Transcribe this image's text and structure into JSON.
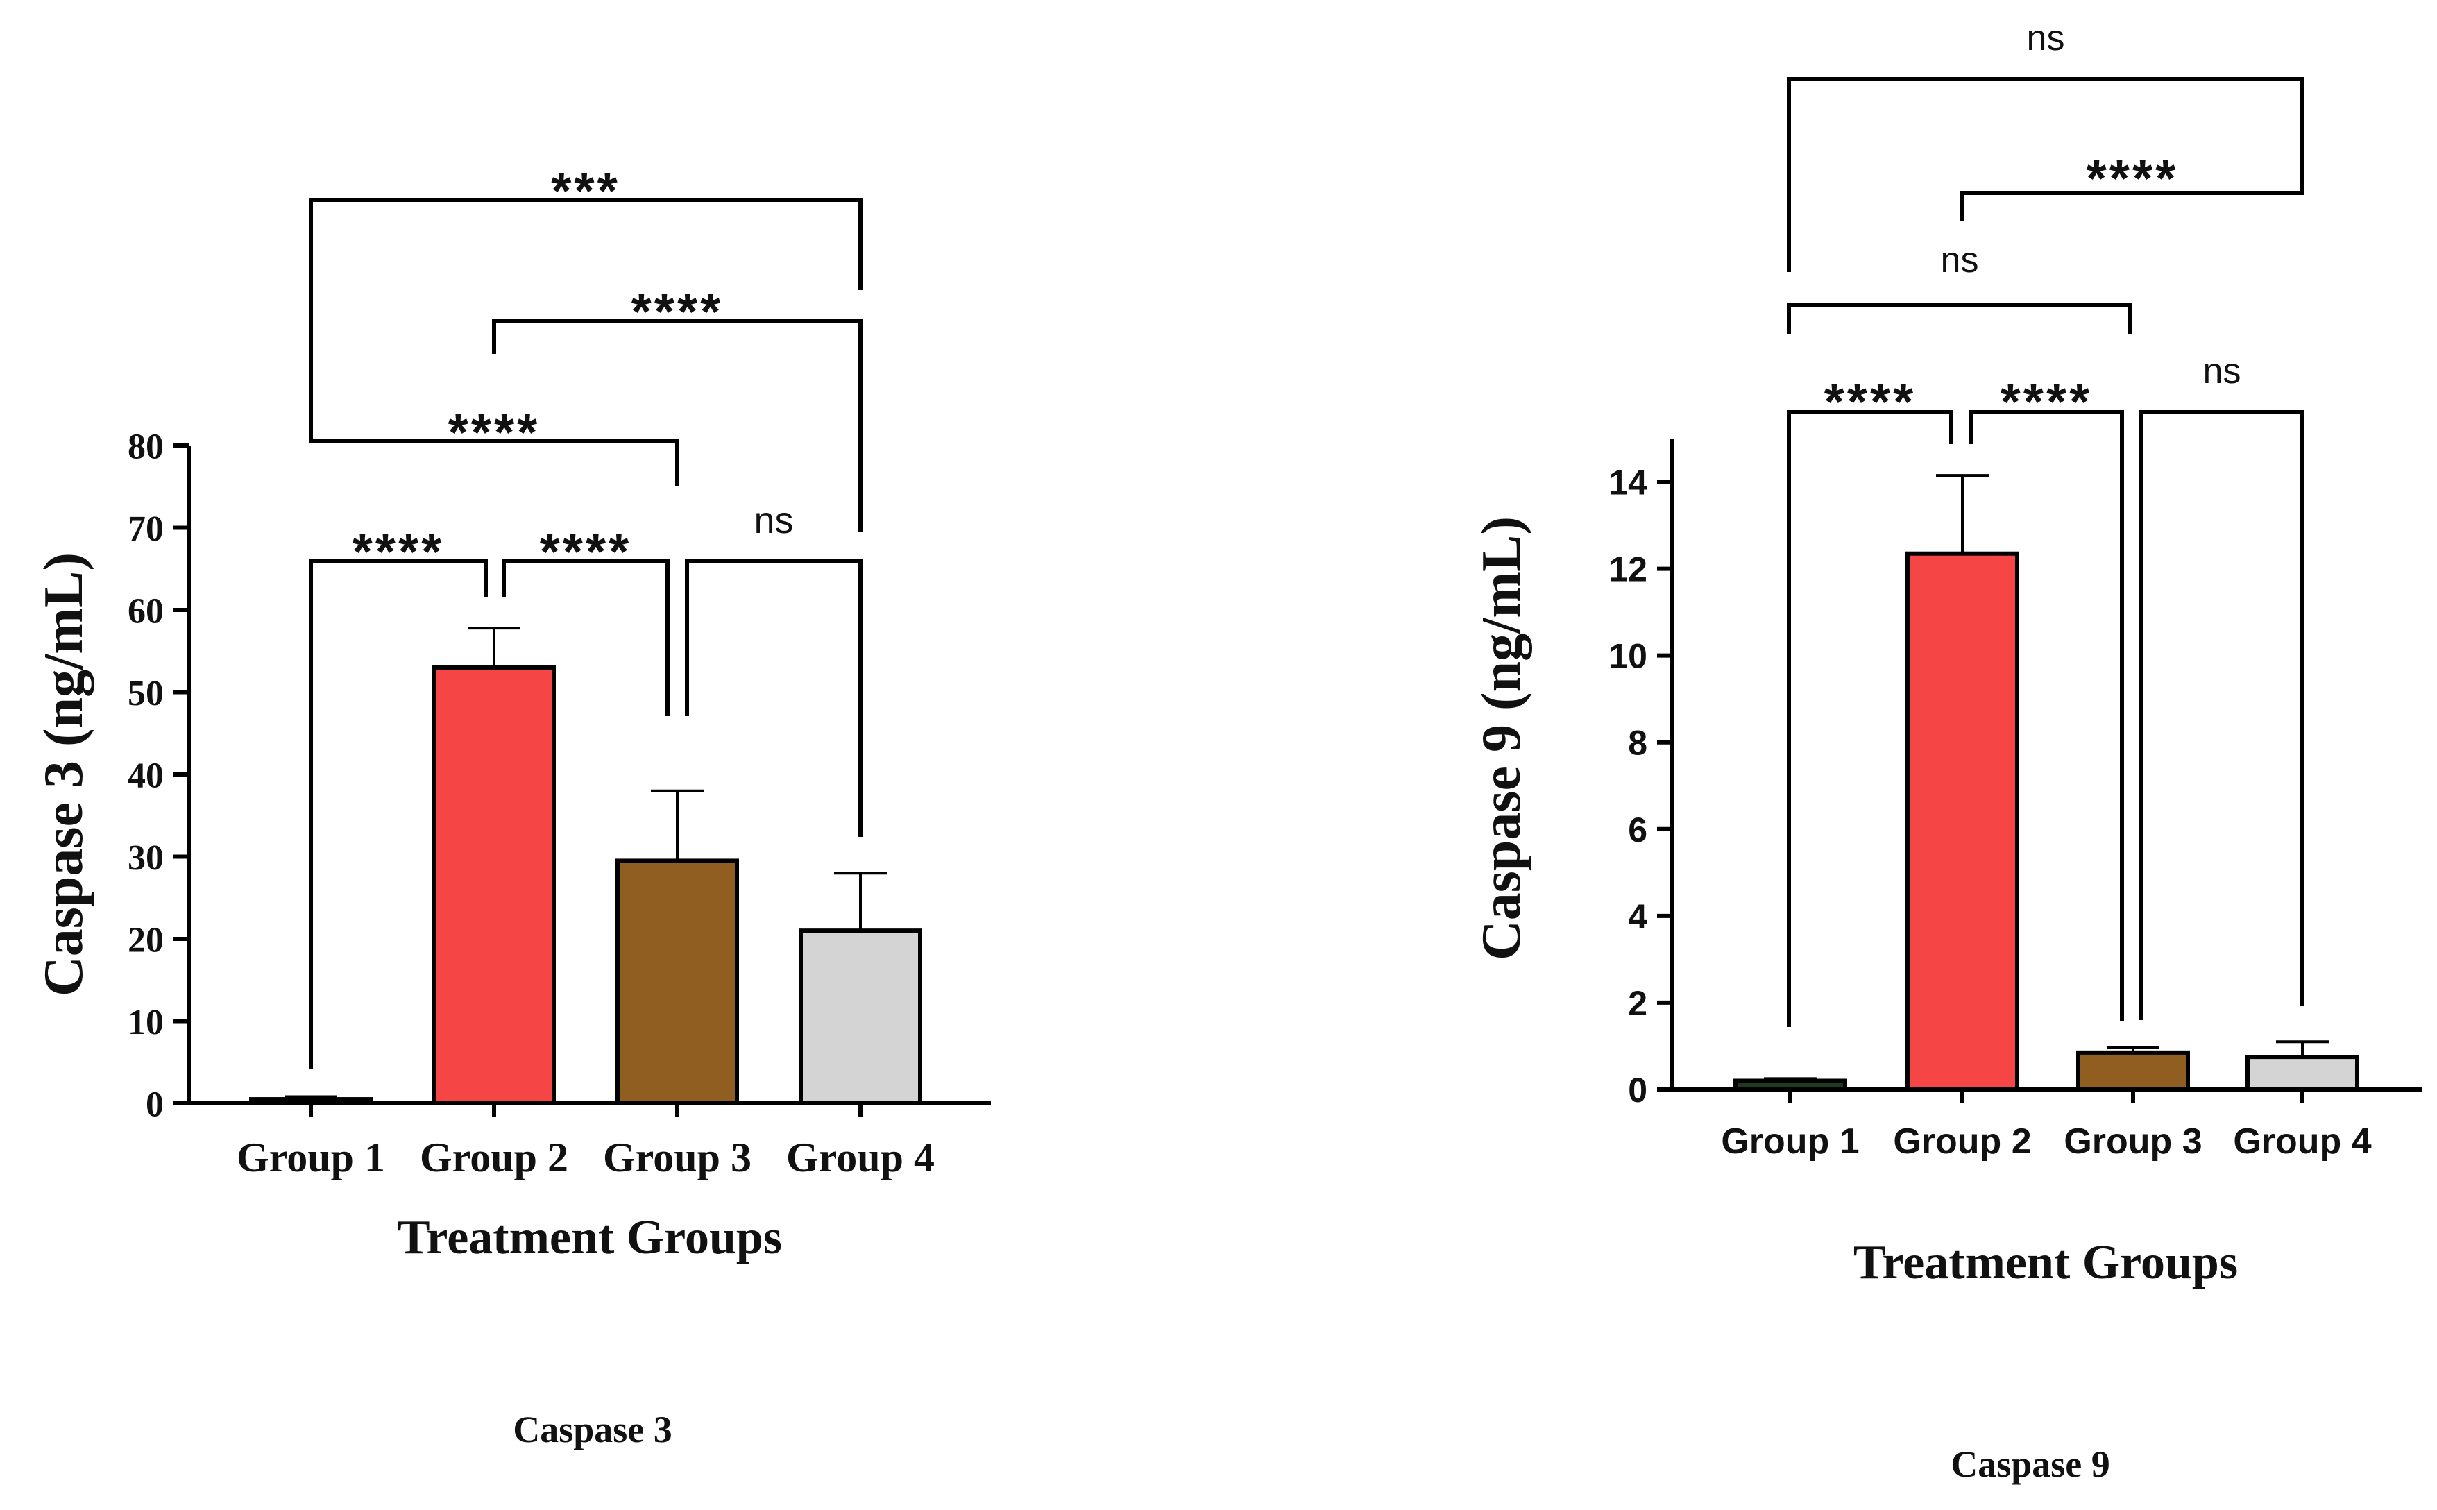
{
  "chart_data": [
    {
      "type": "bar",
      "title": "Caspase 3",
      "xlabel": "Treatment Groups",
      "ylabel": "Caspase 3 (ng/mL)",
      "categories": [
        "Group 1",
        "Group 2",
        "Group 3",
        "Group 4"
      ],
      "values": [
        0.5,
        53,
        29.5,
        21
      ],
      "errors": [
        0.3,
        4.8,
        8.5,
        7
      ],
      "colors": [
        "#1f3a1f",
        "#f64545",
        "#8f5e20",
        "#d4d4d4"
      ],
      "ylim": [
        0,
        80
      ],
      "yticks": [
        0,
        10,
        20,
        30,
        40,
        50,
        60,
        70,
        80
      ],
      "ytick_labels": [
        "0",
        "10",
        "20",
        "30",
        "40",
        "50",
        "60",
        "70",
        "80"
      ],
      "grid": false,
      "significance": [
        {
          "groups": [
            1,
            2
          ],
          "label": "****"
        },
        {
          "groups": [
            2,
            3
          ],
          "label": "****"
        },
        {
          "groups": [
            3,
            4
          ],
          "label": "ns"
        },
        {
          "groups": [
            1,
            3
          ],
          "label": "****"
        },
        {
          "groups": [
            2,
            4
          ],
          "label": "****"
        },
        {
          "groups": [
            1,
            4
          ],
          "label": "***"
        }
      ]
    },
    {
      "type": "bar",
      "title": "Caspase 9",
      "xlabel": "Treatment Groups",
      "ylabel": "Caspase 9 (ng/mL)",
      "categories": [
        "Group 1",
        "Group 2",
        "Group 3",
        "Group 4"
      ],
      "values": [
        0.2,
        12.35,
        0.85,
        0.75
      ],
      "errors": [
        0.05,
        1.8,
        0.12,
        0.35
      ],
      "colors": [
        "#1f3a1f",
        "#f64545",
        "#8f5e20",
        "#d4d4d4"
      ],
      "ylim": [
        0,
        15
      ],
      "yticks": [
        0,
        2,
        4,
        6,
        8,
        10,
        12,
        14
      ],
      "ytick_labels": [
        "0",
        "2",
        "4",
        "6",
        "8",
        "10",
        "12",
        "14"
      ],
      "grid": false,
      "significance": [
        {
          "groups": [
            1,
            2
          ],
          "label": "****"
        },
        {
          "groups": [
            2,
            3
          ],
          "label": "****"
        },
        {
          "groups": [
            3,
            4
          ],
          "label": "ns"
        },
        {
          "groups": [
            1,
            3
          ],
          "label": "ns"
        },
        {
          "groups": [
            2,
            4
          ],
          "label": "****"
        },
        {
          "groups": [
            1,
            4
          ],
          "label": "ns"
        }
      ]
    }
  ]
}
